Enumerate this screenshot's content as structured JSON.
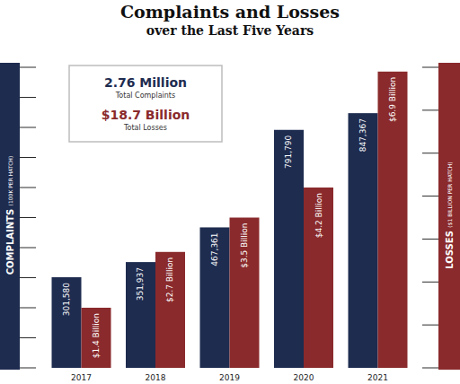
{
  "chart_data": {
    "type": "bar",
    "title": "Complaints and Losses",
    "subtitle": "over the Last Five Years",
    "categories": [
      "2017",
      "2018",
      "2019",
      "2020",
      "2021"
    ],
    "series": [
      {
        "color": "#1e2c50",
        "values": [
          301580,
          351937,
          467361,
          791790,
          847367
        ],
        "value_labels": [
          "301,580",
          "351,937",
          "467,361",
          "791,790",
          "847,367"
        ]
      },
      {
        "color": "#8a2a2c",
        "axis": "y2",
        "values": [
          1.4,
          2.7,
          3.5,
          4.2,
          6.9
        ],
        "value_labels": [
          "$1.4 Billion",
          "$2.7 Billion",
          "$3.5 Billion",
          "$4.2 Billion",
          "$6.9 Billion"
        ]
      }
    ],
    "ylabel": "COMPLAINTS (100K PER HATCH)",
    "y2label": "LOSSES ($1 BILLION PER HATCH)",
    "ylim": [
      0,
      1000000
    ],
    "yticks": [
      0,
      100000,
      200000,
      300000,
      400000,
      500000,
      600000,
      700000,
      800000,
      900000,
      1000000
    ],
    "y2lim": [
      0,
      7
    ],
    "y2ticks": [
      0,
      1,
      2,
      3,
      4,
      5,
      6,
      7
    ],
    "annotations": [
      {
        "title": "2.76 Million",
        "text": "Total Complaints"
      },
      {
        "title": "$18.7 Billion",
        "text": "Total Losses"
      }
    ],
    "data_labels": true,
    "tick_labels": "x",
    "grid": false
  }
}
